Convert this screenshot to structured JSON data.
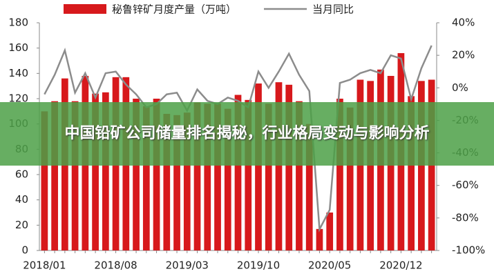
{
  "chart_data": {
    "type": "bar-line",
    "categories": [
      "2018/01",
      null,
      null,
      null,
      null,
      null,
      null,
      "2018/08",
      null,
      null,
      null,
      null,
      null,
      null,
      "2019/03",
      null,
      null,
      null,
      null,
      null,
      null,
      "2019/10",
      null,
      null,
      null,
      null,
      null,
      null,
      "2020/05",
      null,
      null,
      null,
      null,
      null,
      null,
      "2020/12",
      null,
      null,
      null
    ],
    "series": [
      {
        "name": "秘鲁锌矿月度产量（万吨）",
        "color": "#d7191c",
        "kind": "bar",
        "values": [
          110,
          118,
          136,
          118,
          138,
          124,
          125,
          137,
          137,
          120,
          114,
          120,
          108,
          107,
          109,
          117,
          116,
          116,
          112,
          123,
          119,
          132,
          116,
          133,
          131,
          118,
          100,
          17,
          30,
          120,
          113,
          135,
          134,
          143,
          138,
          156,
          122,
          134,
          135
        ]
      },
      {
        "name": "当月同比",
        "color": "#8c8c8c",
        "kind": "line",
        "axis": "y2",
        "values": [
          -4,
          8,
          23,
          -3,
          9,
          -6,
          9,
          10,
          2,
          -4,
          -12,
          -10,
          -4,
          -3,
          -14,
          -1,
          -8,
          -10,
          -6,
          -8,
          -12,
          10,
          0,
          10,
          21,
          8,
          -2,
          -87,
          -75,
          3,
          5,
          9,
          11,
          9,
          20,
          18,
          -7,
          12,
          26
        ]
      }
    ],
    "ylim": [
      0,
      180
    ],
    "yticks": [
      0,
      20,
      40,
      60,
      80,
      100,
      120,
      140,
      160,
      180
    ],
    "y2lim": [
      -100,
      40
    ],
    "y2ticks": [
      {
        "value": -100,
        "label": "-100%"
      },
      {
        "value": -80,
        "label": "-80%"
      },
      {
        "value": -60,
        "label": "-60%"
      },
      {
        "value": -40,
        "label": "-40%"
      },
      {
        "value": -20,
        "label": "-20%"
      },
      {
        "value": 0,
        "label": "0%"
      },
      {
        "value": 20,
        "label": "20%"
      },
      {
        "value": 40,
        "label": "40%"
      }
    ],
    "legend": "top"
  },
  "overlay": {
    "title": "中国铅矿公司储量排名揭秘，行业格局变动与影响分析"
  }
}
